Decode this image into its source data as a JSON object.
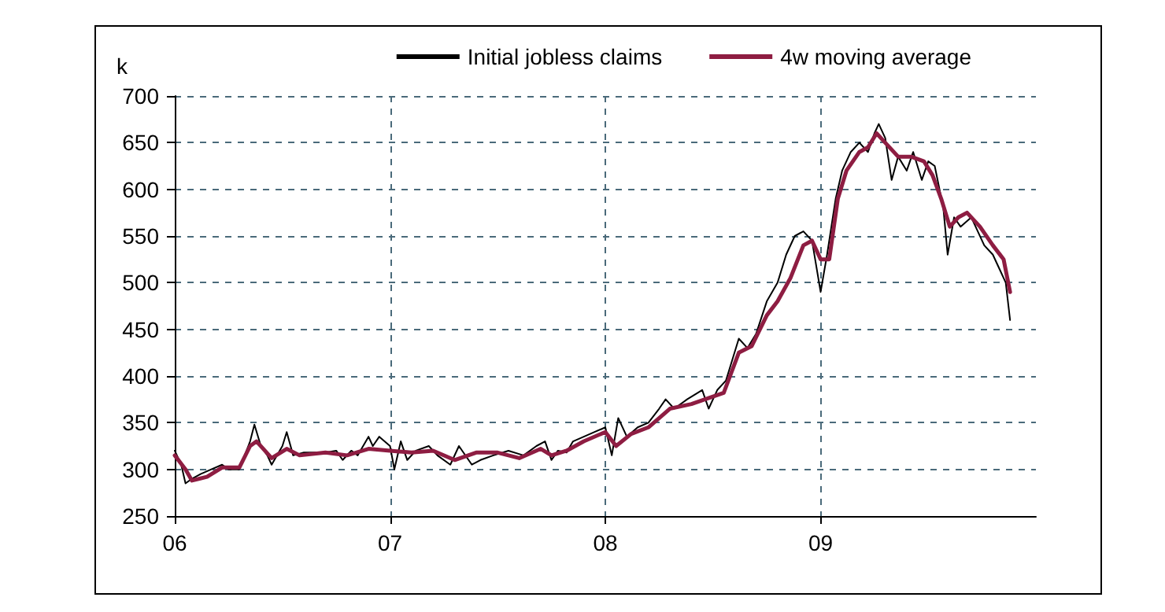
{
  "chart_data": {
    "type": "line",
    "ylabel": "k",
    "xlim": [
      2006,
      2010
    ],
    "ylim": [
      250,
      700
    ],
    "xticks": [
      {
        "value": 2006,
        "label": "06"
      },
      {
        "value": 2007,
        "label": "07"
      },
      {
        "value": 2008,
        "label": "08"
      },
      {
        "value": 2009,
        "label": "09"
      }
    ],
    "yticks": [
      250,
      300,
      350,
      400,
      450,
      500,
      550,
      600,
      650,
      700
    ],
    "grid": true,
    "legend": "top right",
    "marker": "none",
    "line_style": "solid",
    "series": [
      {
        "name": "Initial jobless claims",
        "color": "#000000",
        "x": [
          2006.0,
          2006.03,
          2006.05,
          2006.08,
          2006.12,
          2006.17,
          2006.22,
          2006.25,
          2006.3,
          2006.35,
          2006.37,
          2006.4,
          2006.43,
          2006.45,
          2006.5,
          2006.52,
          2006.55,
          2006.6,
          2006.7,
          2006.75,
          2006.78,
          2006.82,
          2006.85,
          2006.9,
          2006.92,
          2006.95,
          2007.0,
          2007.02,
          2007.05,
          2007.08,
          2007.12,
          2007.18,
          2007.22,
          2007.28,
          2007.32,
          2007.38,
          2007.42,
          2007.48,
          2007.55,
          2007.62,
          2007.68,
          2007.72,
          2007.75,
          2007.78,
          2007.82,
          2007.85,
          2007.9,
          2007.95,
          2008.0,
          2008.03,
          2008.06,
          2008.1,
          2008.15,
          2008.2,
          2008.25,
          2008.28,
          2008.32,
          2008.38,
          2008.45,
          2008.48,
          2008.52,
          2008.56,
          2008.62,
          2008.66,
          2008.7,
          2008.75,
          2008.8,
          2008.84,
          2008.88,
          2008.92,
          2008.96,
          2009.0,
          2009.03,
          2009.07,
          2009.1,
          2009.14,
          2009.18,
          2009.22,
          2009.25,
          2009.27,
          2009.3,
          2009.33,
          2009.36,
          2009.4,
          2009.43,
          2009.47,
          2009.5,
          2009.53,
          2009.57,
          2009.59,
          2009.62,
          2009.65,
          2009.7,
          2009.73,
          2009.76,
          2009.8,
          2009.83,
          2009.86,
          2009.88
        ],
        "values": [
          320,
          305,
          285,
          290,
          295,
          300,
          305,
          300,
          300,
          330,
          348,
          325,
          315,
          305,
          325,
          340,
          315,
          318,
          318,
          320,
          310,
          320,
          315,
          335,
          325,
          335,
          325,
          300,
          330,
          310,
          320,
          325,
          315,
          305,
          325,
          305,
          310,
          315,
          320,
          315,
          325,
          330,
          310,
          320,
          318,
          330,
          335,
          340,
          345,
          315,
          355,
          335,
          345,
          350,
          365,
          375,
          365,
          375,
          385,
          365,
          385,
          395,
          440,
          430,
          445,
          480,
          500,
          530,
          550,
          555,
          545,
          490,
          530,
          590,
          620,
          640,
          650,
          640,
          660,
          670,
          655,
          610,
          635,
          620,
          640,
          610,
          630,
          625,
          580,
          530,
          570,
          560,
          570,
          555,
          540,
          530,
          515,
          500,
          460
        ]
      },
      {
        "name": "4w moving average",
        "color": "#8e1d42",
        "x": [
          2006.0,
          2006.05,
          2006.08,
          2006.15,
          2006.22,
          2006.3,
          2006.35,
          2006.38,
          2006.45,
          2006.52,
          2006.58,
          2006.7,
          2006.8,
          2006.9,
          2007.0,
          2007.1,
          2007.2,
          2007.3,
          2007.4,
          2007.5,
          2007.6,
          2007.7,
          2007.75,
          2007.82,
          2007.9,
          2008.0,
          2008.05,
          2008.12,
          2008.2,
          2008.3,
          2008.4,
          2008.5,
          2008.55,
          2008.62,
          2008.68,
          2008.75,
          2008.8,
          2008.86,
          2008.92,
          2008.96,
          2009.0,
          2009.04,
          2009.08,
          2009.12,
          2009.18,
          2009.22,
          2009.26,
          2009.3,
          2009.36,
          2009.42,
          2009.48,
          2009.52,
          2009.56,
          2009.6,
          2009.64,
          2009.68,
          2009.74,
          2009.8,
          2009.85,
          2009.88
        ],
        "values": [
          315,
          300,
          288,
          292,
          302,
          302,
          325,
          330,
          312,
          322,
          315,
          318,
          315,
          322,
          320,
          318,
          320,
          310,
          318,
          318,
          312,
          322,
          315,
          320,
          330,
          340,
          325,
          338,
          345,
          365,
          370,
          378,
          382,
          425,
          432,
          465,
          480,
          505,
          540,
          545,
          525,
          525,
          590,
          620,
          640,
          645,
          660,
          650,
          635,
          635,
          630,
          615,
          590,
          560,
          570,
          575,
          560,
          540,
          525,
          490
        ]
      }
    ]
  }
}
